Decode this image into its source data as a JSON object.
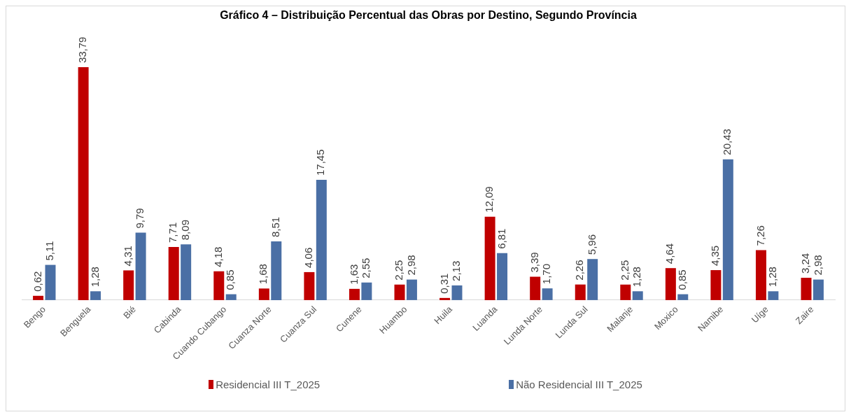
{
  "chart_data": {
    "type": "bar",
    "title": "Gráfico 4 – Distribuição Percentual das Obras por Destino, Segundo Província",
    "categories": [
      "Bengo",
      "Benguela",
      "Bié",
      "Cabinda",
      "Cuando Cubango",
      "Cuanza Norte",
      "Cuanza Sul",
      "Cunene",
      "Huambo",
      "Huila",
      "Luanda",
      "Lunda Norte",
      "Lunda Sul",
      "Malanje",
      "Moxico",
      "Namibe",
      "Uíge",
      "Zaire"
    ],
    "series": [
      {
        "name": "Residencial III T_2025",
        "color": "#c00000",
        "values": [
          0.62,
          33.79,
          4.31,
          7.71,
          4.18,
          1.68,
          4.06,
          1.63,
          2.25,
          0.31,
          12.09,
          3.39,
          2.26,
          2.25,
          4.64,
          4.35,
          7.26,
          3.24
        ],
        "value_labels": [
          "0,62",
          "33,79",
          "4,31",
          "7,71",
          "4,18",
          "1,68",
          "4,06",
          "1,63",
          "2,25",
          "0,31",
          "12,09",
          "3,39",
          "2,26",
          "2,25",
          "4,64",
          "4,35",
          "7,26",
          "3,24"
        ]
      },
      {
        "name": "Não Residencial III T_2025",
        "color": "#4a6fa5",
        "values": [
          5.11,
          1.28,
          9.79,
          8.09,
          0.85,
          8.51,
          17.45,
          2.55,
          2.98,
          2.13,
          6.81,
          1.7,
          5.96,
          1.28,
          0.85,
          20.43,
          1.28,
          2.98
        ],
        "value_labels": [
          "5,11",
          "1,28",
          "9,79",
          "8,09",
          "0,85",
          "8,51",
          "17,45",
          "2,55",
          "2,98",
          "2,13",
          "6,81",
          "1,70",
          "5,96",
          "1,28",
          "0,85",
          "20,43",
          "1,28",
          "2,98"
        ]
      }
    ],
    "tick_labels": "x",
    "legend": "bottom"
  }
}
